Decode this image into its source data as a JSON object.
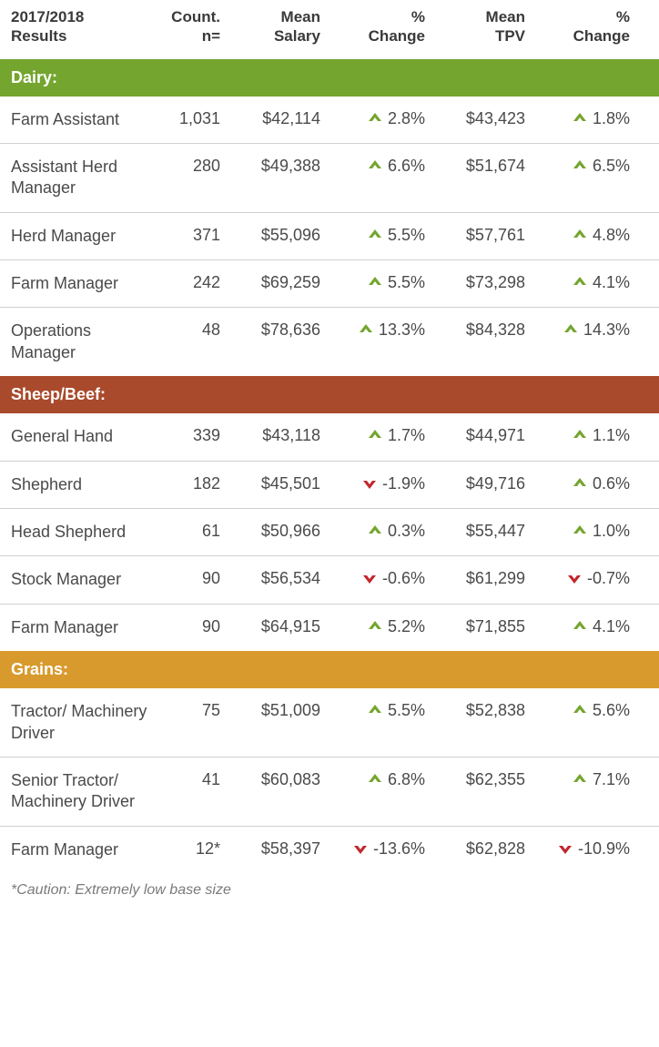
{
  "header": {
    "col1_line1": "2017/2018",
    "col1_line2": "Results",
    "col2_line1": "Count.",
    "col2_line2": "n=",
    "col3_line1": "Mean",
    "col3_line2": "Salary",
    "col4_line1": "%",
    "col4_line2": "Change",
    "col5_line1": "Mean",
    "col5_line2": "TPV",
    "col6_line1": "%",
    "col6_line2": "Change"
  },
  "colors": {
    "dairy_bg": "#74a52e",
    "sheepbeef_bg": "#a94a2c",
    "grains_bg": "#d89a2d",
    "up": "#74a52e",
    "down": "#c1272d",
    "row_border": "#d0d0d0",
    "text": "#4a4a4a",
    "header_text": "#3a3a3a"
  },
  "sections": [
    {
      "label": "Dairy:",
      "bg": "#74a52e",
      "rows": [
        {
          "role": "Farm Assistant",
          "count": "1,031",
          "salary": "$42,114",
          "d1": "up",
          "c1": "2.8%",
          "tpv": "$43,423",
          "d2": "up",
          "c2": "1.8%"
        },
        {
          "role": "Assistant Herd Manager",
          "count": "280",
          "salary": "$49,388",
          "d1": "up",
          "c1": "6.6%",
          "tpv": "$51,674",
          "d2": "up",
          "c2": "6.5%"
        },
        {
          "role": "Herd Manager",
          "count": "371",
          "salary": "$55,096",
          "d1": "up",
          "c1": "5.5%",
          "tpv": "$57,761",
          "d2": "up",
          "c2": "4.8%"
        },
        {
          "role": "Farm Manager",
          "count": "242",
          "salary": "$69,259",
          "d1": "up",
          "c1": "5.5%",
          "tpv": "$73,298",
          "d2": "up",
          "c2": "4.1%"
        },
        {
          "role": "Operations Manager",
          "count": "48",
          "salary": "$78,636",
          "d1": "up",
          "c1": "13.3%",
          "tpv": "$84,328",
          "d2": "up",
          "c2": "14.3%"
        }
      ]
    },
    {
      "label": "Sheep/Beef:",
      "bg": "#a94a2c",
      "rows": [
        {
          "role": "General Hand",
          "count": "339",
          "salary": "$43,118",
          "d1": "up",
          "c1": "1.7%",
          "tpv": "$44,971",
          "d2": "up",
          "c2": "1.1%"
        },
        {
          "role": "Shepherd",
          "count": "182",
          "salary": "$45,501",
          "d1": "down",
          "c1": "-1.9%",
          "tpv": "$49,716",
          "d2": "up",
          "c2": "0.6%"
        },
        {
          "role": "Head Shepherd",
          "count": "61",
          "salary": "$50,966",
          "d1": "up",
          "c1": "0.3%",
          "tpv": "$55,447",
          "d2": "up",
          "c2": "1.0%"
        },
        {
          "role": "Stock Manager",
          "count": "90",
          "salary": "$56,534",
          "d1": "down",
          "c1": "-0.6%",
          "tpv": "$61,299",
          "d2": "down",
          "c2": "-0.7%"
        },
        {
          "role": "Farm Manager",
          "count": "90",
          "salary": "$64,915",
          "d1": "up",
          "c1": "5.2%",
          "tpv": "$71,855",
          "d2": "up",
          "c2": "4.1%"
        }
      ]
    },
    {
      "label": "Grains:",
      "bg": "#d89a2d",
      "rows": [
        {
          "role": "Tractor/ Machinery Driver",
          "count": "75",
          "salary": "$51,009",
          "d1": "up",
          "c1": "5.5%",
          "tpv": "$52,838",
          "d2": "up",
          "c2": "5.6%"
        },
        {
          "role": "Senior Tractor/ Machinery Driver",
          "count": "41",
          "salary": "$60,083",
          "d1": "up",
          "c1": "6.8%",
          "tpv": "$62,355",
          "d2": "up",
          "c2": "7.1%"
        },
        {
          "role": "Farm Manager",
          "count": "12*",
          "salary": "$58,397",
          "d1": "down",
          "c1": "-13.6%",
          "tpv": "$62,828",
          "d2": "down",
          "c2": "-10.9%"
        }
      ]
    }
  ],
  "footnote": "*Caution: Extremely low base size"
}
